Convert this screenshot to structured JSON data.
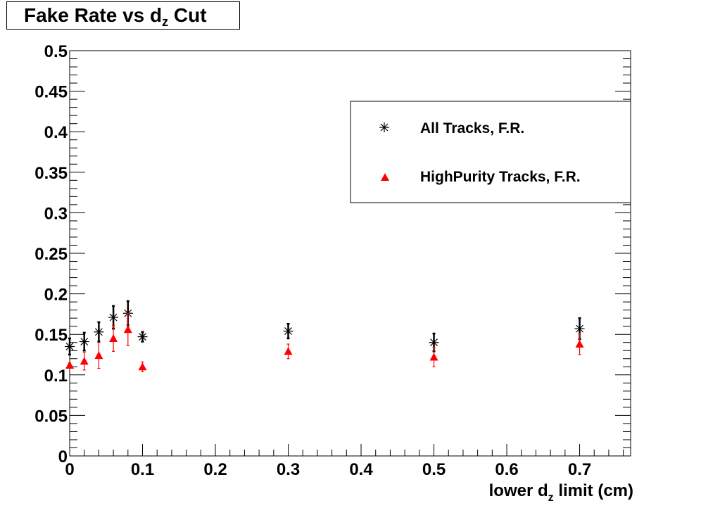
{
  "chart_data": {
    "type": "scatter",
    "title": {
      "before_sub": "Fake Rate vs d",
      "sub": "z",
      "after_sub": " Cut"
    },
    "xlabel": {
      "before_sub": "lower d",
      "sub": "z",
      "after_sub": " limit (cm)"
    },
    "ylabel": "",
    "xlim": [
      0,
      0.77
    ],
    "ylim": [
      0,
      0.5
    ],
    "x_ticks": [
      "0",
      "0.1",
      "0.2",
      "0.3",
      "0.4",
      "0.5",
      "0.6",
      "0.7"
    ],
    "y_ticks": [
      "0",
      "0.05",
      "0.1",
      "0.15",
      "0.2",
      "0.25",
      "0.3",
      "0.35",
      "0.4",
      "0.45",
      "0.5"
    ],
    "grid": false,
    "legend_position": "top-right",
    "series": [
      {
        "name": "All Tracks, F.R.",
        "marker": "asterisk",
        "color": "#000000",
        "x": [
          0.0,
          0.02,
          0.04,
          0.06,
          0.08,
          0.1,
          0.3,
          0.5,
          0.7
        ],
        "y": [
          0.135,
          0.141,
          0.153,
          0.171,
          0.176,
          0.147,
          0.154,
          0.14,
          0.157
        ],
        "yerr": [
          0.01,
          0.011,
          0.012,
          0.014,
          0.015,
          0.006,
          0.009,
          0.011,
          0.013
        ]
      },
      {
        "name": "HighPurity Tracks, F.R.",
        "marker": "triangle",
        "color": "#ff0000",
        "x": [
          0.0,
          0.02,
          0.04,
          0.06,
          0.08,
          0.1,
          0.3,
          0.5,
          0.7
        ],
        "y": [
          0.112,
          0.117,
          0.124,
          0.145,
          0.156,
          0.11,
          0.129,
          0.122,
          0.138
        ],
        "yerr": [
          0.003,
          0.011,
          0.016,
          0.016,
          0.02,
          0.006,
          0.009,
          0.012,
          0.013
        ]
      }
    ]
  }
}
